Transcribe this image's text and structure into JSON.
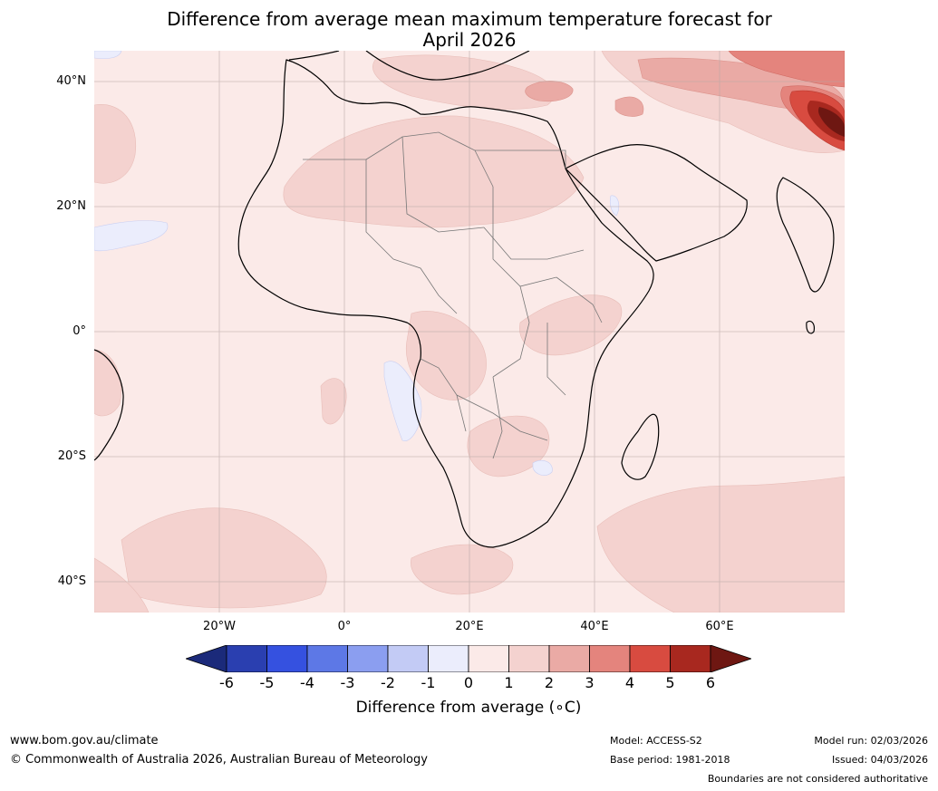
{
  "title_line1": "Difference from average mean maximum temperature forecast for",
  "title_line2": "April 2026",
  "map": {
    "region": "Africa",
    "lat_labels": [
      "40°N",
      "20°N",
      "0°",
      "20°S",
      "40°S"
    ],
    "lon_labels": [
      "20°W",
      "0°",
      "20°E",
      "40°E",
      "60°E"
    ]
  },
  "colorbar": {
    "label": "Difference from average (°C)",
    "label_display": "Difference from average (∘C)",
    "ticks": [
      "-6",
      "-5",
      "-4",
      "-3",
      "-2",
      "-1",
      "0",
      "1",
      "2",
      "3",
      "4",
      "5",
      "6"
    ],
    "colors": [
      "#1b2a7a",
      "#2a3fb0",
      "#3551e0",
      "#5d78e6",
      "#8b9ef0",
      "#c3cbf5",
      "#ebedfc",
      "#fbeae8",
      "#f4d2cf",
      "#eaaaa5",
      "#e4847d",
      "#d84b40",
      "#a8281f",
      "#6e1712"
    ]
  },
  "footer": {
    "url": "www.bom.gov.au/climate",
    "copyright": "© Commonwealth of Australia 2026, Australian Bureau of Meteorology",
    "model": "Model: ACCESS-S2",
    "base_period": "Base period: 1981-2018",
    "model_run": "Model run: 02/03/2026",
    "issued": "Issued: 04/03/2026",
    "disclaimer": "Boundaries are not considered authoritative"
  }
}
